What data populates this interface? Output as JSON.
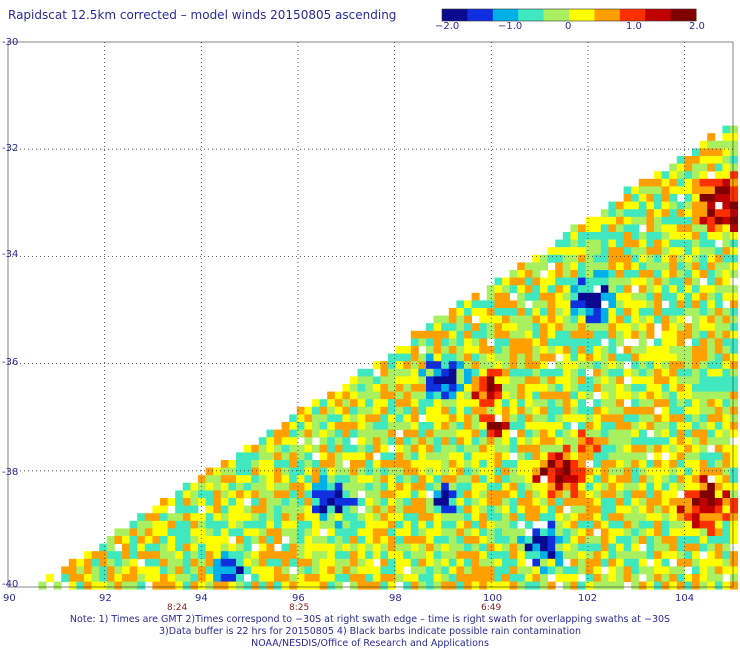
{
  "title": "Rapidscat 12.5km corrected – model winds 20150805 ascending",
  "colorbar": {
    "ticks": [
      "−2.0",
      "−1.0",
      "0",
      "1.0",
      "2.0"
    ],
    "colors": [
      "#0a0a90",
      "#1030e0",
      "#00b0e8",
      "#40e8c0",
      "#a8f060",
      "#ffff00",
      "#ffa000",
      "#ff3000",
      "#c00000",
      "#800000"
    ],
    "range": [
      -2.0,
      2.0
    ]
  },
  "latitude_labels": [
    "-30",
    "-32",
    "-34",
    "-36",
    "-38",
    "-40"
  ],
  "longitude_labels": [
    "90",
    "92",
    "94",
    "96",
    "98",
    "100",
    "102",
    "104"
  ],
  "swath_times": [
    "8:24",
    "8:25",
    "6:49"
  ],
  "notes": [
    "Note: 1) Times are GMT 2)Times correspond to −30S at right swath edge – time is right swath for overlapping swaths at −30S",
    "3)Data buffer is 22 hrs for 20150805 4) Black barbs indicate possible rain contamination",
    "NOAA/NESDIS/Office of Research and Applications"
  ],
  "map": {
    "lon_range": [
      90,
      105
    ],
    "lat_range": [
      -40,
      -30
    ],
    "swath_edge": [
      [
        91,
        -40
      ],
      [
        104.8,
        -31.7
      ]
    ]
  }
}
